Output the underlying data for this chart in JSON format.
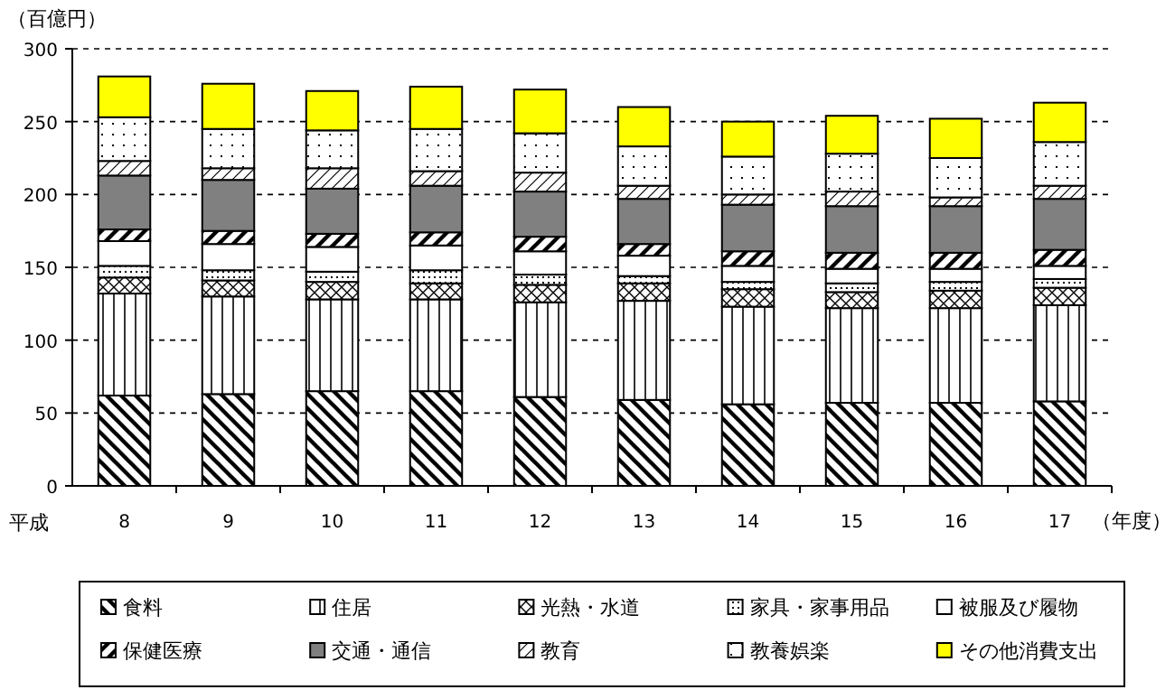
{
  "chart_data": {
    "type": "bar",
    "stacked": true,
    "ylabel": "（百億円）",
    "xlabel": "（年度）",
    "annotations": [
      "平成"
    ],
    "categories": [
      "8",
      "9",
      "10",
      "11",
      "12",
      "13",
      "14",
      "15",
      "16",
      "17"
    ],
    "ylim": [
      0,
      300
    ],
    "yticks": [
      0,
      50,
      100,
      150,
      200,
      250,
      300
    ],
    "grid": "y",
    "legend": "bottom",
    "series": [
      {
        "name": "食料",
        "color": "#000000",
        "values": [
          62,
          63,
          65,
          65,
          61,
          59,
          56,
          57,
          57,
          58
        ]
      },
      {
        "name": "住居",
        "color": "#000000",
        "values": [
          70,
          67,
          63,
          63,
          65,
          68,
          67,
          65,
          65,
          66
        ]
      },
      {
        "name": "光熱・水道",
        "color": "#000000",
        "values": [
          11,
          11,
          12,
          11,
          12,
          12,
          12,
          11,
          12,
          12
        ]
      },
      {
        "name": "家具・家事用品",
        "color": "#000000",
        "values": [
          8,
          7,
          7,
          9,
          7,
          5,
          5,
          6,
          6,
          6
        ]
      },
      {
        "name": "被服及び履物",
        "color": "#ffffff",
        "values": [
          17,
          18,
          17,
          17,
          16,
          14,
          11,
          10,
          9,
          9
        ]
      },
      {
        "name": "保健医療",
        "color": "#000000",
        "values": [
          8,
          9,
          9,
          9,
          10,
          8,
          10,
          11,
          11,
          11
        ]
      },
      {
        "name": "交通・通信",
        "color": "#808080",
        "values": [
          37,
          35,
          31,
          32,
          31,
          31,
          32,
          32,
          32,
          35
        ]
      },
      {
        "name": "教育",
        "color": "#000000",
        "values": [
          10,
          8,
          14,
          10,
          13,
          9,
          7,
          10,
          6,
          9
        ]
      },
      {
        "name": "教養娯楽",
        "color": "#000000",
        "values": [
          30,
          27,
          26,
          29,
          27,
          27,
          26,
          26,
          27,
          30
        ]
      },
      {
        "name": "その他消費支出",
        "color": "#ffff00",
        "values": [
          28,
          31,
          27,
          29,
          30,
          27,
          24,
          26,
          27,
          27
        ]
      }
    ]
  }
}
